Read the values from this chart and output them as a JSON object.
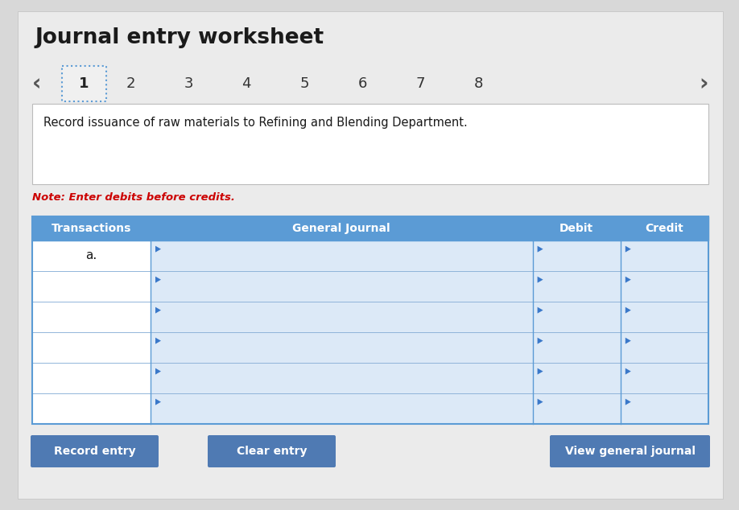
{
  "title": "Journal entry worksheet",
  "background_color": "#d8d8d8",
  "content_bg": "#ebebeb",
  "tab_numbers": [
    "1",
    "2",
    "3",
    "4",
    "5",
    "6",
    "7",
    "8"
  ],
  "active_tab": "1",
  "active_tab_bg": "#f0f0f0",
  "active_tab_border": "#5b9bd5",
  "description": "Record issuance of raw materials to Refining and Blending Department.",
  "desc_bg": "#ffffff",
  "desc_border": "#bbbbbb",
  "note": "Note: Enter debits before credits.",
  "note_color": "#cc0000",
  "table_header": [
    "Transactions",
    "General Journal",
    "Debit",
    "Credit"
  ],
  "table_header_bg": "#5b9bd5",
  "table_header_text": "#ffffff",
  "table_transactions_bg": "#ffffff",
  "table_input_bg": "#dce9f7",
  "table_border_color": "#5b9bd5",
  "table_row_border": "#8ab0d8",
  "first_row_label": "a.",
  "num_rows": 6,
  "button_bg": "#4f7ab3",
  "button_text_color": "#ffffff",
  "buttons": [
    "Record entry",
    "Clear entry",
    "View general journal"
  ],
  "arrow_color": "#3a78c9",
  "col_ratios": [
    0.175,
    0.565,
    0.13,
    0.13
  ],
  "nav_arrow_color": "#555555"
}
